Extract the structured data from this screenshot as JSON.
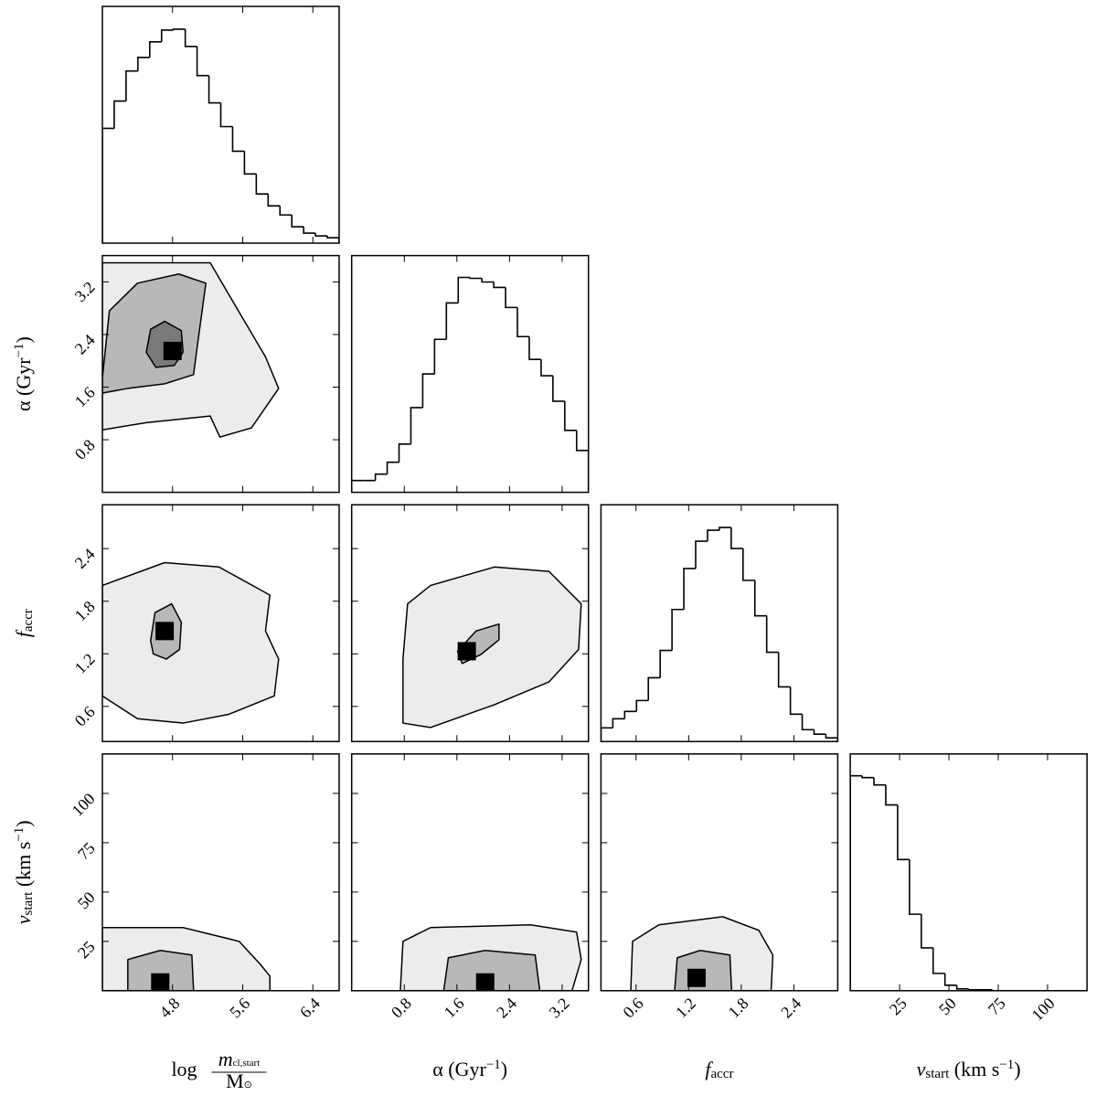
{
  "chart_data": {
    "type": "corner",
    "params": [
      {
        "label": [
          {
            "t": "log",
            "s": "n"
          },
          {
            "t": "m",
            "s": "num"
          },
          {
            "t": "cl,start",
            "s": "numsub"
          },
          {
            "t": "M",
            "s": "den"
          },
          {
            "t": "⊙",
            "s": "densub"
          }
        ],
        "lim": [
          4.0,
          6.7
        ],
        "ticks": [
          4.8,
          5.6,
          6.4
        ]
      },
      {
        "label": [
          {
            "t": "α (Gyr",
            "s": "n"
          },
          {
            "t": "−1",
            "s": "sup"
          },
          {
            "t": ")",
            "s": "n"
          }
        ],
        "lim": [
          0,
          3.6
        ],
        "ticks": [
          0.8,
          1.6,
          2.4,
          3.2
        ]
      },
      {
        "label": [
          {
            "t": "f",
            "s": "n"
          },
          {
            "t": "accr",
            "s": "sub"
          }
        ],
        "lim": [
          0.2,
          2.9
        ],
        "ticks": [
          0.6,
          1.2,
          1.8,
          2.4
        ]
      },
      {
        "label": [
          {
            "t": "v",
            "s": "n"
          },
          {
            "t": "start",
            "s": "sub"
          },
          {
            "t": " (km s",
            "s": "n"
          },
          {
            "t": "−1",
            "s": "sup"
          },
          {
            "t": ")",
            "s": "n"
          }
        ],
        "lim": [
          0,
          120
        ],
        "ticks": [
          25,
          50,
          75,
          100
        ]
      }
    ],
    "histograms": [
      {
        "bins": [
          4.0,
          4.135,
          4.27,
          4.405,
          4.54,
          4.675,
          4.81,
          4.945,
          5.08,
          5.215,
          5.35,
          5.485,
          5.62,
          5.755,
          5.89,
          6.025,
          6.16,
          6.295,
          6.43,
          6.565,
          6.7
        ],
        "counts": [
          126,
          156,
          189,
          204,
          221,
          234,
          235,
          216,
          184,
          154,
          128,
          101,
          76,
          54,
          41,
          31,
          18,
          11,
          8,
          6
        ],
        "ylim": [
          0,
          260
        ]
      },
      {
        "bins": [
          0,
          0.18,
          0.36,
          0.54,
          0.72,
          0.9,
          1.08,
          1.26,
          1.44,
          1.62,
          1.8,
          1.98,
          2.16,
          2.34,
          2.52,
          2.7,
          2.88,
          3.06,
          3.24,
          3.42,
          3.6
        ],
        "counts": [
          13,
          13,
          20,
          33,
          53,
          93,
          130,
          168,
          208,
          236,
          235,
          231,
          225,
          203,
          171,
          146,
          128,
          100,
          68,
          46
        ],
        "ylim": [
          0,
          260
        ]
      },
      {
        "bins": [
          0.2,
          0.335,
          0.47,
          0.605,
          0.74,
          0.875,
          1.01,
          1.145,
          1.28,
          1.415,
          1.55,
          1.685,
          1.82,
          1.955,
          2.09,
          2.225,
          2.36,
          2.495,
          2.63,
          2.765,
          2.9
        ],
        "counts": [
          15,
          25,
          33,
          45,
          70,
          100,
          145,
          190,
          220,
          232,
          235,
          212,
          177,
          138,
          98,
          60,
          30,
          13,
          8,
          4
        ],
        "ylim": [
          0,
          260
        ]
      },
      {
        "bins": [
          0,
          6,
          12,
          18,
          24,
          30,
          36,
          42,
          48,
          54,
          60,
          66,
          72,
          78,
          84,
          90,
          96,
          102,
          108,
          114,
          120
        ],
        "counts": [
          236,
          234,
          226,
          204,
          144,
          84,
          47,
          19,
          6,
          2,
          1,
          1,
          0,
          0,
          0,
          0,
          0,
          0,
          0,
          0
        ],
        "ylim": [
          0,
          260
        ]
      }
    ],
    "panels": [
      {
        "contours": [
          {
            "x": [
              4.0,
              4.5,
              5.23,
              5.34,
              5.7,
              6.01,
              5.86,
              5.52,
              5.23,
              4.0
            ],
            "y": [
              0.95,
              1.06,
              1.16,
              0.84,
              0.98,
              1.58,
              2.06,
              2.83,
              3.49,
              3.49
            ]
          },
          {
            "x": [
              4.0,
              4.08,
              4.4,
              4.87,
              5.18,
              5.08,
              5.04,
              4.71,
              4.29,
              4.0
            ],
            "y": [
              1.74,
              2.76,
              3.18,
              3.32,
              3.18,
              2.2,
              1.79,
              1.65,
              1.58,
              1.51
            ]
          },
          {
            "x": [
              4.5,
              4.55,
              4.71,
              4.9,
              4.92,
              4.82,
              4.61
            ],
            "y": [
              2.13,
              2.48,
              2.6,
              2.46,
              2.13,
              1.93,
              1.9
            ]
          }
        ],
        "peak": {
          "x": 4.8,
          "y": 2.15
        }
      },
      {
        "contours": [
          {
            "x": [
              4.0,
              4.4,
              4.92,
              5.44,
              5.96,
              6.01,
              5.86,
              5.91,
              5.33,
              4.71,
              4.0
            ],
            "y": [
              0.72,
              0.46,
              0.41,
              0.51,
              0.72,
              1.14,
              1.46,
              1.87,
              2.19,
              2.24,
              1.98
            ]
          },
          {
            "x": [
              4.55,
              4.6,
              4.79,
              4.9,
              4.88,
              4.73,
              4.58
            ],
            "y": [
              1.35,
              1.67,
              1.77,
              1.56,
              1.25,
              1.14,
              1.2
            ]
          }
        ],
        "peak": {
          "x": 4.71,
          "y": 1.46
        }
      },
      {
        "contours": [
          {
            "x": [
              0.78,
              1.2,
              2.17,
              3.0,
              3.45,
              3.49,
              3.0,
              2.17,
              1.2,
              0.85,
              0.78
            ],
            "y": [
              0.41,
              0.36,
              0.62,
              0.88,
              1.25,
              1.77,
              2.14,
              2.19,
              1.98,
              1.77,
              1.14
            ]
          },
          {
            "x": [
              1.61,
              1.89,
              2.24,
              2.24,
              1.96,
              1.68
            ],
            "y": [
              1.23,
              1.46,
              1.54,
              1.36,
              1.19,
              1.09
            ]
          }
        ],
        "peak": {
          "x": 1.75,
          "y": 1.23
        }
      },
      {
        "contours": [
          {
            "x": [
              4.0,
              4.92,
              5.56,
              5.8,
              5.91,
              5.91,
              4.0
            ],
            "y": [
              32,
              32,
              25,
              13.4,
              7.4,
              0,
              0
            ]
          },
          {
            "x": [
              4.29,
              4.29,
              4.66,
              5.02,
              5.04
            ],
            "y": [
              0,
              15.8,
              20.4,
              18.1,
              0
            ]
          }
        ],
        "peak": {
          "x": 4.66,
          "y": 4.2
        }
      },
      {
        "contours": [
          {
            "x": [
              0.74,
              0.78,
              1.2,
              2.72,
              3.42,
              3.49,
              3.35
            ],
            "y": [
              0,
              25,
              32,
              33.4,
              29.7,
              15.8,
              0
            ]
          },
          {
            "x": [
              1.4,
              1.47,
              2.03,
              2.79,
              2.86
            ],
            "y": [
              0,
              16.7,
              20.4,
              18.1,
              0
            ]
          }
        ],
        "peak": {
          "x": 2.03,
          "y": 4.2
        }
      },
      {
        "contours": [
          {
            "x": [
              0.54,
              0.56,
              0.86,
              1.59,
              2.0,
              2.16,
              2.14
            ],
            "y": [
              0,
              25,
              33.4,
              37.5,
              30.6,
              18.1,
              0
            ]
          },
          {
            "x": [
              1.04,
              1.07,
              1.33,
              1.67,
              1.69
            ],
            "y": [
              0,
              16.7,
              20.4,
              18.1,
              0
            ]
          }
        ],
        "peak": {
          "x": 1.29,
          "y": 6.5
        }
      }
    ]
  }
}
